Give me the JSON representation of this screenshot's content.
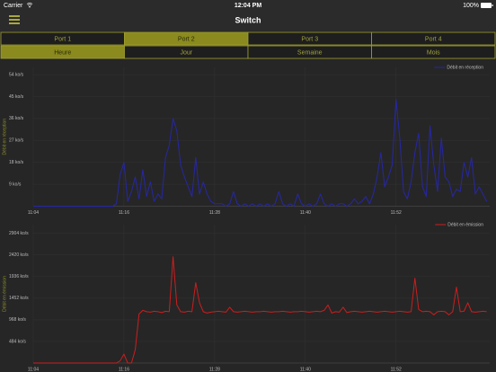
{
  "status_bar": {
    "carrier": "Carrier",
    "time": "12:04 PM",
    "battery": "100%"
  },
  "nav": {
    "title": "Switch"
  },
  "port_tabs": {
    "items": [
      "Port 1",
      "Port 2",
      "Port 3",
      "Port 4"
    ],
    "selected": 1
  },
  "period_tabs": {
    "items": [
      "Heure",
      "Jour",
      "Semaine",
      "Mois"
    ],
    "selected": 0
  },
  "chart_data": [
    {
      "type": "line",
      "ylabel": "Débit en réception",
      "legend": "upper right",
      "grid": true,
      "x": [
        664,
        664.5,
        665,
        665.5,
        666,
        666.5,
        667,
        667.5,
        668,
        668.5,
        669,
        669.5,
        670,
        670.5,
        671,
        671.5,
        672,
        672.5,
        673,
        673.5,
        674,
        674.5,
        675,
        675.5,
        676,
        676.5,
        677,
        677.5,
        678,
        678.5,
        679,
        679.5,
        680,
        680.5,
        681,
        681.5,
        682,
        682.5,
        683,
        683.5,
        684,
        684.5,
        685,
        685.5,
        686,
        686.5,
        687,
        687.5,
        688,
        688.5,
        689,
        689.5,
        690,
        690.5,
        691,
        691.5,
        692,
        692.5,
        693,
        693.5,
        694,
        694.5,
        695,
        695.5,
        696,
        696.5,
        697,
        697.5,
        698,
        698.5,
        699,
        699.5,
        700,
        700.5,
        701,
        701.5,
        702,
        702.5,
        703,
        703.5,
        704,
        704.5,
        705,
        705.5,
        706,
        706.5,
        707,
        707.5,
        708,
        708.5,
        709,
        709.5,
        710,
        710.5,
        711,
        711.5,
        712,
        712.5,
        713,
        713.5,
        714,
        714.5,
        715,
        715.5,
        716,
        716.5,
        717,
        717.5,
        718,
        718.5,
        719,
        719.5,
        720,
        720.5,
        721,
        721.5,
        722,
        722.5,
        723,
        723.5,
        724
      ],
      "series": [
        {
          "name": "Débit en réception",
          "color": "#2626a8",
          "values": [
            0,
            0,
            0,
            0,
            0,
            0,
            0,
            0,
            0,
            0,
            0,
            0,
            0,
            0,
            0,
            0,
            0,
            0,
            0,
            0,
            0,
            0,
            1,
            13,
            18,
            2,
            6,
            12,
            3,
            15,
            4,
            10,
            2,
            5,
            3,
            20,
            25,
            36,
            31,
            17,
            12,
            8,
            4,
            20,
            5,
            10,
            5,
            2,
            1,
            1,
            1,
            0,
            1,
            6,
            1,
            0,
            1,
            0,
            1,
            0,
            1,
            0,
            1,
            0,
            1,
            6,
            1,
            0,
            1,
            0,
            5,
            1,
            0,
            1,
            0,
            1,
            5,
            1,
            0,
            1,
            0,
            1,
            1,
            0,
            1,
            3,
            1,
            2,
            4,
            1,
            5,
            12,
            22,
            8,
            12,
            17,
            44,
            28,
            6,
            3,
            10,
            22,
            30,
            8,
            4,
            33,
            17,
            6,
            28,
            12,
            10,
            4,
            7,
            6,
            18,
            12,
            20,
            5,
            8,
            5,
            2
          ]
        }
      ],
      "xlim": [
        664,
        724.4
      ],
      "ylim": [
        0,
        57
      ],
      "xticks": [
        {
          "value": 664,
          "label": "11:04"
        },
        {
          "value": 676,
          "label": "11:16"
        },
        {
          "value": 688,
          "label": "11:28"
        },
        {
          "value": 700,
          "label": "11:40"
        },
        {
          "value": 712,
          "label": "11:52"
        }
      ],
      "yticks": [
        {
          "value": 9,
          "label": "9 ko/s"
        },
        {
          "value": 18,
          "label": "18 ko/s"
        },
        {
          "value": 27,
          "label": "27 ko/s"
        },
        {
          "value": 36,
          "label": "36 ko/s"
        },
        {
          "value": 45,
          "label": "45 ko/s"
        },
        {
          "value": 54,
          "label": "54 ko/s"
        }
      ]
    },
    {
      "type": "line",
      "ylabel": "Débit en émission",
      "legend": "upper right",
      "grid": true,
      "x": [
        664,
        664.5,
        665,
        665.5,
        666,
        666.5,
        667,
        667.5,
        668,
        668.5,
        669,
        669.5,
        670,
        670.5,
        671,
        671.5,
        672,
        672.5,
        673,
        673.5,
        674,
        674.5,
        675,
        675.5,
        676,
        676.5,
        677,
        677.5,
        678,
        678.5,
        679,
        679.5,
        680,
        680.5,
        681,
        681.5,
        682,
        682.5,
        683,
        683.5,
        684,
        684.5,
        685,
        685.5,
        686,
        686.5,
        687,
        687.5,
        688,
        688.5,
        689,
        689.5,
        690,
        690.5,
        691,
        691.5,
        692,
        692.5,
        693,
        693.5,
        694,
        694.5,
        695,
        695.5,
        696,
        696.5,
        697,
        697.5,
        698,
        698.5,
        699,
        699.5,
        700,
        700.5,
        701,
        701.5,
        702,
        702.5,
        703,
        703.5,
        704,
        704.5,
        705,
        705.5,
        706,
        706.5,
        707,
        707.5,
        708,
        708.5,
        709,
        709.5,
        710,
        710.5,
        711,
        711.5,
        712,
        712.5,
        713,
        713.5,
        714,
        714.5,
        715,
        715.5,
        716,
        716.5,
        717,
        717.5,
        718,
        718.5,
        719,
        719.5,
        720,
        720.5,
        721,
        721.5,
        722,
        722.5,
        723,
        723.5,
        724
      ],
      "series": [
        {
          "name": "Débit en émission",
          "color": "#cc1e1e",
          "values": [
            0,
            0,
            0,
            0,
            0,
            0,
            0,
            0,
            0,
            0,
            0,
            0,
            0,
            0,
            0,
            0,
            0,
            0,
            0,
            0,
            0,
            0,
            0,
            50,
            200,
            0,
            0,
            300,
            1100,
            1180,
            1150,
            1140,
            1160,
            1150,
            1130,
            1160,
            1150,
            2380,
            1300,
            1150,
            1140,
            1160,
            1150,
            1800,
            1350,
            1150,
            1120,
            1140,
            1150,
            1160,
            1150,
            1140,
            1250,
            1150,
            1140,
            1150,
            1160,
            1150,
            1140,
            1150,
            1150,
            1160,
            1150,
            1140,
            1150,
            1150,
            1160,
            1150,
            1140,
            1150,
            1150,
            1160,
            1150,
            1140,
            1150,
            1160,
            1150,
            1180,
            1300,
            1120,
            1150,
            1140,
            1250,
            1130,
            1150,
            1160,
            1150,
            1140,
            1150,
            1160,
            1150,
            1140,
            1150,
            1160,
            1150,
            1140,
            1150,
            1160,
            1150,
            1140,
            1150,
            1900,
            1200,
            1150,
            1160,
            1150,
            1080,
            1150,
            1160,
            1150,
            1080,
            1150,
            1700,
            1150,
            1160,
            1350,
            1150,
            1140,
            1150,
            1160,
            1150
          ]
        }
      ],
      "xlim": [
        664,
        724.4
      ],
      "ylim": [
        0,
        3100
      ],
      "xticks": [
        {
          "value": 664,
          "label": "11:04"
        },
        {
          "value": 676,
          "label": "11:16"
        },
        {
          "value": 688,
          "label": "11:28"
        },
        {
          "value": 700,
          "label": "11:40"
        },
        {
          "value": 712,
          "label": "11:52"
        }
      ],
      "yticks": [
        {
          "value": 484,
          "label": "484 ko/s"
        },
        {
          "value": 968,
          "label": "968 ko/s"
        },
        {
          "value": 1452,
          "label": "1452 ko/s"
        },
        {
          "value": 1936,
          "label": "1936 ko/s"
        },
        {
          "value": 2420,
          "label": "2420 ko/s"
        },
        {
          "value": 2904,
          "label": "2904 ko/s"
        }
      ]
    }
  ]
}
